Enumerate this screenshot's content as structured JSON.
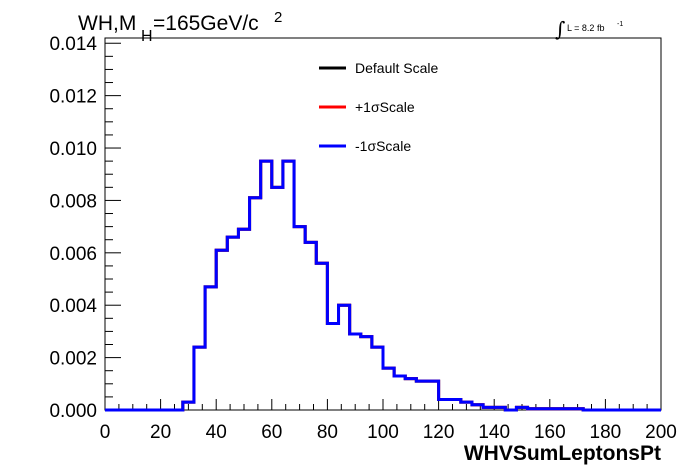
{
  "chart_data": {
    "type": "line",
    "histogram": true,
    "title_parts": {
      "main": "WH,M",
      "subscript": "H",
      "mass": "=165GeV/c",
      "superscript": "2"
    },
    "lumi": {
      "integral": "∫",
      "text": "L = 8.2 fb",
      "superscript": "-1"
    },
    "xlabel": "WHVSumLeptonsPt",
    "ylabel": "",
    "xlim": [
      0,
      200
    ],
    "ylim": [
      0,
      0.0142
    ],
    "x_ticks": [
      "0",
      "20",
      "40",
      "60",
      "80",
      "100",
      "120",
      "140",
      "160",
      "180",
      "200"
    ],
    "y_ticks": [
      "0.000",
      "0.002",
      "0.004",
      "0.006",
      "0.008",
      "0.010",
      "0.012",
      "0.014"
    ],
    "legend_position": "top-center",
    "series": [
      {
        "name": "Default Scale",
        "color": "#000000"
      },
      {
        "name": "+1σScale",
        "color": "#ff0000"
      },
      {
        "name": "-1σScale",
        "color": "#0000ff"
      }
    ],
    "bin_width": 4,
    "bin_edges_start": 0,
    "values": [
      0,
      0,
      0,
      0,
      0,
      0,
      0,
      0.0003,
      0.0024,
      0.0047,
      0.0061,
      0.0066,
      0.0069,
      0.0081,
      0.0095,
      0.0085,
      0.0095,
      0.007,
      0.0064,
      0.0056,
      0.0033,
      0.004,
      0.0029,
      0.0028,
      0.0024,
      0.0016,
      0.0013,
      0.0012,
      0.0011,
      0.0011,
      0.0004,
      0.0004,
      0.0003,
      0.0002,
      0.0001,
      0.0001,
      0,
      0.0001,
      5e-05,
      5e-05,
      5e-05,
      5e-05,
      5e-05,
      0,
      0,
      0,
      0,
      0,
      0,
      0
    ]
  }
}
